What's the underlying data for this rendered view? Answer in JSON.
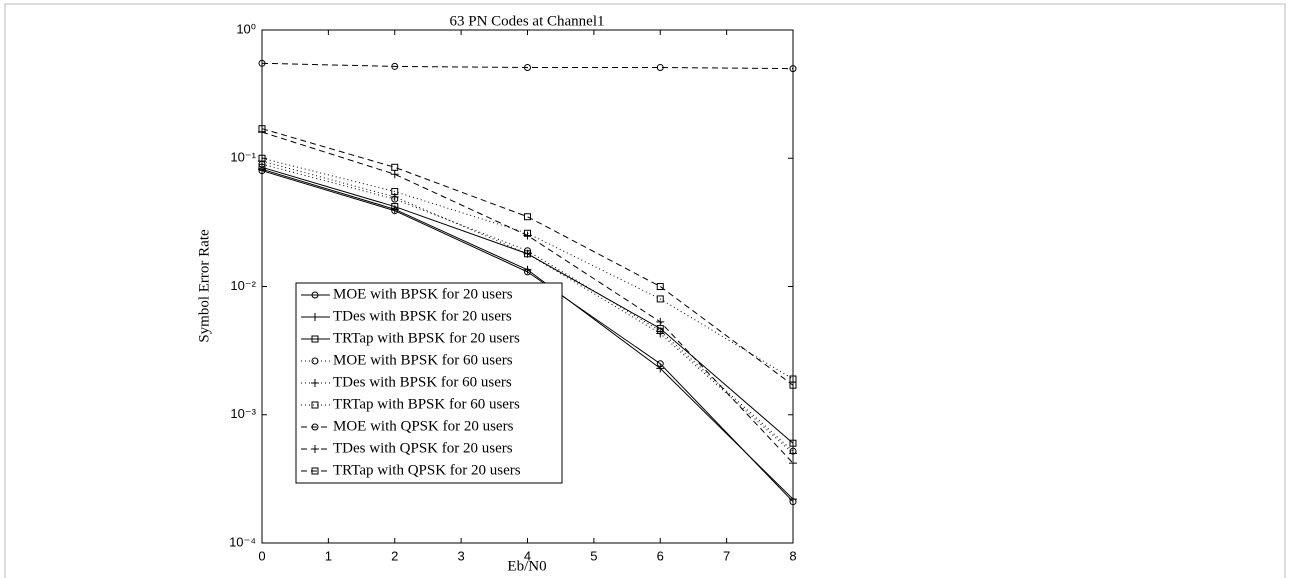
{
  "chart_data": {
    "type": "line",
    "title": "63 PN Codes at Channel1",
    "x_label": "Eb/N0",
    "y_label": "Symbol Error Rate",
    "x": [
      0,
      2,
      4,
      6,
      8
    ],
    "xlim": [
      0,
      8
    ],
    "xticks": [
      0,
      1,
      2,
      3,
      4,
      5,
      6,
      7,
      8
    ],
    "ylim": [
      0.0001,
      1
    ],
    "y_scale": "log",
    "yticks": [
      {
        "value": 0.0001,
        "label": "10⁻⁴"
      },
      {
        "value": 0.001,
        "label": "10⁻³"
      },
      {
        "value": 0.01,
        "label": "10⁻²"
      },
      {
        "value": 0.1,
        "label": "10⁻¹"
      },
      {
        "value": 1,
        "label": "10⁰"
      }
    ],
    "grid": false,
    "legend_position": "lower left",
    "series": [
      {
        "name": "MOE with BPSK for 20 users",
        "color": "#000000",
        "linestyle": "solid",
        "marker": "circle",
        "values": [
          0.08,
          0.039,
          0.013,
          0.0025,
          0.00021
        ]
      },
      {
        "name": "TDes with BPSK for 20 users",
        "color": "#000000",
        "linestyle": "solid",
        "marker": "plus",
        "values": [
          0.082,
          0.04,
          0.0135,
          0.0023,
          0.00022
        ]
      },
      {
        "name": "TRTap with BPSK for 20 users",
        "color": "#000000",
        "linestyle": "solid",
        "marker": "square",
        "values": [
          0.085,
          0.042,
          0.018,
          0.0047,
          0.0006
        ]
      },
      {
        "name": "MOE with BPSK for 60 users",
        "color": "#000000",
        "linestyle": "dotted",
        "marker": "circle",
        "values": [
          0.09,
          0.048,
          0.019,
          0.0045,
          0.00052
        ]
      },
      {
        "name": "TDes with BPSK for 60 users",
        "color": "#000000",
        "linestyle": "dotted",
        "marker": "plus",
        "values": [
          0.095,
          0.05,
          0.018,
          0.0043,
          0.0005
        ]
      },
      {
        "name": "TRTap with BPSK for 60 users",
        "color": "#000000",
        "linestyle": "dotted",
        "marker": "square",
        "values": [
          0.1,
          0.055,
          0.026,
          0.008,
          0.0019
        ]
      },
      {
        "name": "MOE with QPSK for 20 users",
        "color": "#000000",
        "linestyle": "dashed",
        "marker": "circle",
        "values": [
          0.55,
          0.52,
          0.51,
          0.51,
          0.5
        ]
      },
      {
        "name": "TDes with QPSK for 20 users",
        "color": "#000000",
        "linestyle": "dashed",
        "marker": "plus",
        "values": [
          0.16,
          0.075,
          0.025,
          0.0053,
          0.00042
        ]
      },
      {
        "name": "TRTap with QPSK for 20 users",
        "color": "#000000",
        "linestyle": "dashed",
        "marker": "square",
        "values": [
          0.17,
          0.085,
          0.035,
          0.01,
          0.0017
        ]
      }
    ]
  }
}
